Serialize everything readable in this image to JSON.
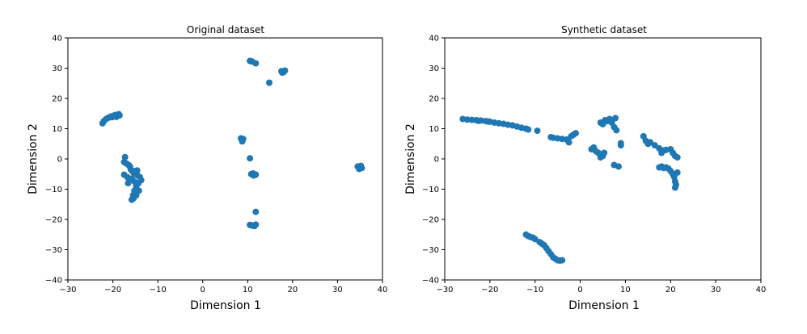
{
  "chart_data": [
    {
      "type": "scatter",
      "title": "Original dataset",
      "xlabel": "Dimension 1",
      "ylabel": "Dimension 2",
      "xlim": [
        -30,
        40
      ],
      "ylim": [
        -40,
        40
      ],
      "xticks": [
        -30,
        -20,
        -10,
        0,
        10,
        20,
        30,
        40
      ],
      "yticks": [
        -40,
        -30,
        -20,
        -10,
        0,
        10,
        20,
        30,
        40
      ],
      "grid": false,
      "color": "#1f77b4",
      "points": [
        [
          -22.3,
          11.8
        ],
        [
          -22,
          12.5
        ],
        [
          -21.5,
          13.2
        ],
        [
          -21,
          13.6
        ],
        [
          -20.5,
          14
        ],
        [
          -20,
          14.2
        ],
        [
          -19.5,
          14.5
        ],
        [
          -19,
          14.6
        ],
        [
          -18.7,
          14.8
        ],
        [
          -18.5,
          14.4
        ],
        [
          -19.2,
          13.9
        ],
        [
          -20.2,
          13.8
        ],
        [
          -17.3,
          0.6
        ],
        [
          -17.5,
          -1
        ],
        [
          -17,
          -1.5
        ],
        [
          -16.5,
          -2
        ],
        [
          -16.2,
          -2.5
        ],
        [
          -16,
          -3.5
        ],
        [
          -15.7,
          -4
        ],
        [
          -15.4,
          -4.5
        ],
        [
          -15,
          -5
        ],
        [
          -14.5,
          -5.5
        ],
        [
          -14,
          -6
        ],
        [
          -13.7,
          -7
        ],
        [
          -14.3,
          -8
        ],
        [
          -14.8,
          -9
        ],
        [
          -15.2,
          -10.5
        ],
        [
          -15.5,
          -12
        ],
        [
          -15.8,
          -13.5
        ],
        [
          -15.4,
          -13
        ],
        [
          -14.8,
          -12
        ],
        [
          -14.2,
          -10.5
        ],
        [
          -17.5,
          -5.2
        ],
        [
          -16.8,
          -6
        ],
        [
          -16.3,
          -7
        ],
        [
          -16.6,
          -8
        ],
        [
          -15.8,
          -6.5
        ],
        [
          -15.2,
          -7.5
        ],
        [
          -15,
          -4
        ],
        [
          -14.6,
          -3.8
        ],
        [
          10.5,
          32.4
        ],
        [
          11,
          32.2
        ],
        [
          11.8,
          31.6
        ],
        [
          17.5,
          29
        ],
        [
          18,
          28.7
        ],
        [
          18.3,
          29.2
        ],
        [
          17.7,
          28.5
        ],
        [
          14.8,
          25.2
        ],
        [
          8.5,
          6.8
        ],
        [
          9,
          6.6
        ],
        [
          8.8,
          5.8
        ],
        [
          10.5,
          0.2
        ],
        [
          10.8,
          -5
        ],
        [
          11.3,
          -5.5
        ],
        [
          11.8,
          -5.2
        ],
        [
          11.2,
          -4.8
        ],
        [
          11.8,
          -17.5
        ],
        [
          10.5,
          -21.8
        ],
        [
          11,
          -22
        ],
        [
          11.5,
          -22.2
        ],
        [
          11.8,
          -21.7
        ],
        [
          34.5,
          -2.5
        ],
        [
          35,
          -2.8
        ],
        [
          35.4,
          -3
        ],
        [
          34.8,
          -3.3
        ],
        [
          35.2,
          -2.3
        ]
      ]
    },
    {
      "type": "scatter",
      "title": "Synthetic dataset",
      "xlabel": "Dimension 1",
      "ylabel": "Dimension 2",
      "xlim": [
        -30,
        40
      ],
      "ylim": [
        -40,
        40
      ],
      "xticks": [
        -30,
        -20,
        -10,
        0,
        10,
        20,
        30,
        40
      ],
      "yticks": [
        -40,
        -30,
        -20,
        -10,
        0,
        10,
        20,
        30,
        40
      ],
      "grid": false,
      "color": "#1f77b4",
      "points": [
        [
          -26,
          13.2
        ],
        [
          -25,
          13
        ],
        [
          -24,
          12.9
        ],
        [
          -23,
          12.8
        ],
        [
          -22.5,
          12.6
        ],
        [
          -22,
          12.7
        ],
        [
          -21,
          12.5
        ],
        [
          -20.5,
          12.4
        ],
        [
          -20,
          12.3
        ],
        [
          -19,
          12
        ],
        [
          -18,
          11.8
        ],
        [
          -17,
          11.6
        ],
        [
          -16,
          11.3
        ],
        [
          -15,
          11.1
        ],
        [
          -14,
          10.7
        ],
        [
          -13,
          10.3
        ],
        [
          -12,
          10
        ],
        [
          -11.5,
          9.7
        ],
        [
          -9.5,
          9.3
        ],
        [
          -6.5,
          7.2
        ],
        [
          -6,
          7
        ],
        [
          -5,
          6.8
        ],
        [
          -4,
          6.6
        ],
        [
          -3,
          6.4
        ],
        [
          -2.5,
          5.5
        ],
        [
          -2,
          7.5
        ],
        [
          -1.5,
          8
        ],
        [
          -1,
          8.5
        ],
        [
          2.5,
          3.2
        ],
        [
          3,
          3.8
        ],
        [
          3.5,
          2.5
        ],
        [
          4,
          2
        ],
        [
          4.5,
          1.5
        ],
        [
          5,
          1
        ],
        [
          4.5,
          0.5
        ],
        [
          5.3,
          2
        ],
        [
          4.5,
          12
        ],
        [
          5,
          11.5
        ],
        [
          5.5,
          12.8
        ],
        [
          6,
          12.5
        ],
        [
          6.5,
          13.2
        ],
        [
          7,
          12
        ],
        [
          7.5,
          10.5
        ],
        [
          8,
          9.5
        ],
        [
          7.8,
          13.5
        ],
        [
          8.5,
          -2.5
        ],
        [
          7.5,
          -2
        ],
        [
          9,
          4.5
        ],
        [
          9,
          5.2
        ],
        [
          14,
          7.5
        ],
        [
          14.5,
          6
        ],
        [
          15,
          5
        ],
        [
          15.5,
          5.5
        ],
        [
          16.5,
          4.5
        ],
        [
          17.5,
          3.5
        ],
        [
          18,
          2
        ],
        [
          18.5,
          2.8
        ],
        [
          19,
          3
        ],
        [
          20,
          3.2
        ],
        [
          20.5,
          2
        ],
        [
          21,
          1
        ],
        [
          21.5,
          0.5
        ],
        [
          17.5,
          -2.8
        ],
        [
          18,
          -2.5
        ],
        [
          18.5,
          -3
        ],
        [
          19,
          -2.8
        ],
        [
          19.5,
          -3.2
        ],
        [
          20,
          -4
        ],
        [
          20.5,
          -5
        ],
        [
          20.8,
          -6
        ],
        [
          21,
          -7.5
        ],
        [
          21.2,
          -8.5
        ],
        [
          21,
          -9.5
        ],
        [
          21.5,
          -4.5
        ],
        [
          -12,
          -25
        ],
        [
          -11,
          -25.8
        ],
        [
          -10,
          -26.5
        ],
        [
          -9,
          -27.5
        ],
        [
          -8,
          -28.5
        ],
        [
          -7.5,
          -29.5
        ],
        [
          -7,
          -30.5
        ],
        [
          -6.5,
          -31.5
        ],
        [
          -6,
          -32.5
        ],
        [
          -5.5,
          -33
        ],
        [
          -5,
          -33.5
        ],
        [
          -4.5,
          -33.6
        ],
        [
          -4,
          -33.5
        ],
        [
          -11.5,
          -25.5
        ],
        [
          -10.5,
          -26
        ],
        [
          -8.5,
          -28
        ]
      ]
    }
  ]
}
